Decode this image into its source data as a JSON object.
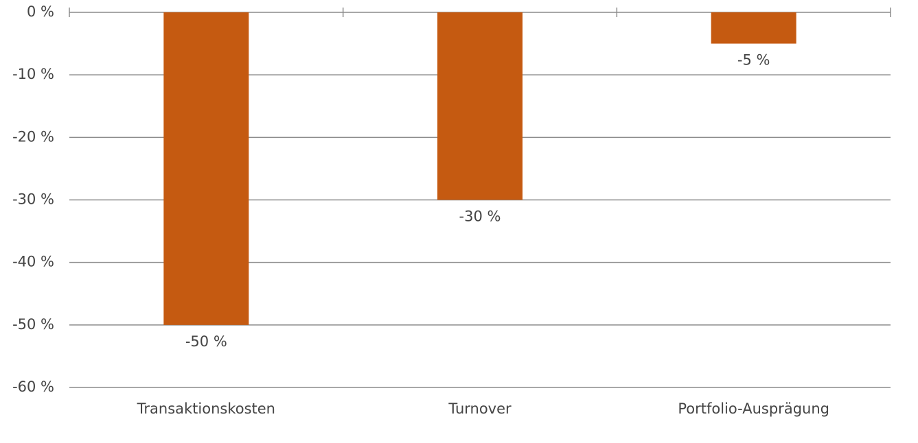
{
  "chart_data": {
    "type": "bar",
    "categories": [
      "Transaktionskosten",
      "Turnover",
      "Portfolio-Ausprägung"
    ],
    "values": [
      -50,
      -30,
      -5
    ],
    "value_labels": [
      "-50 %",
      "-30 %",
      "-5 %"
    ],
    "color": "#c55a11",
    "ylim": [
      -60,
      0
    ],
    "yticks": [
      {
        "value": 0,
        "label": "0 %"
      },
      {
        "value": -10,
        "label": "-10 %"
      },
      {
        "value": -20,
        "label": "-20 %"
      },
      {
        "value": -30,
        "label": "-30 %"
      },
      {
        "value": -40,
        "label": "-40 %"
      },
      {
        "value": -50,
        "label": "-50 %"
      },
      {
        "value": -60,
        "label": "-60 %"
      }
    ],
    "grid": true
  }
}
